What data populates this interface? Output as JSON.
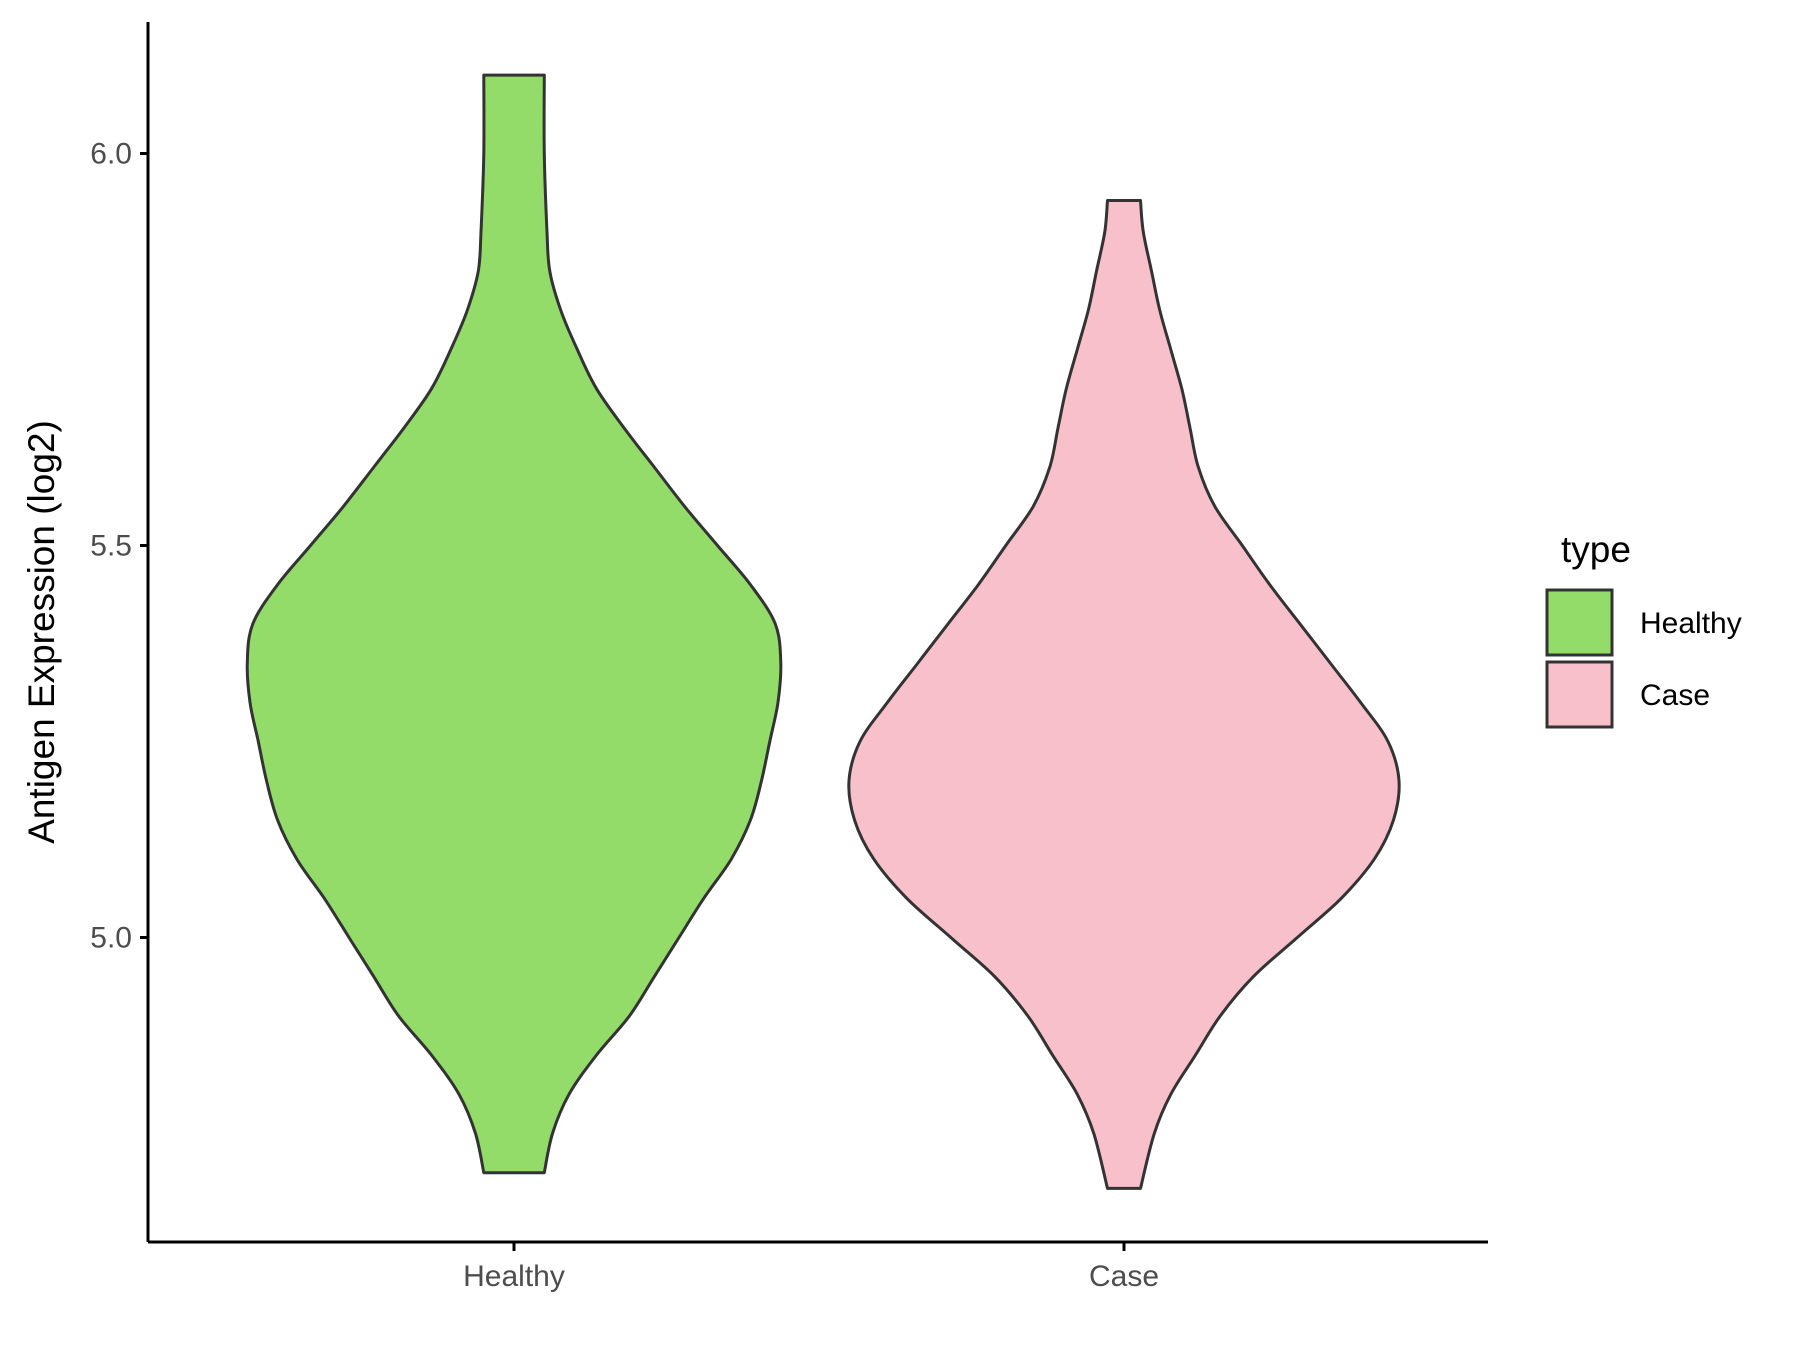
{
  "chart_data": {
    "type": "violin",
    "title": "",
    "xlabel": "",
    "ylabel": "Antigen Expression (log2)",
    "categories": [
      "Healthy",
      "Case"
    ],
    "ylim": [
      4.62,
      6.17
    ],
    "yticks": [
      5.0,
      5.5,
      6.0
    ],
    "ytick_labels": [
      "5.0",
      "5.5",
      "6.0"
    ],
    "grid": false,
    "legend": {
      "title": "type",
      "position": "right",
      "entries": [
        "Healthy",
        "Case"
      ]
    },
    "colors": {
      "Healthy": "#93dc69",
      "Case": "#f7c0cb",
      "outline": "#333333",
      "axis": "#000000"
    },
    "series": [
      {
        "name": "Healthy",
        "min": 4.7,
        "max": 6.1,
        "density_profile": [
          [
            4.7,
            0.11
          ],
          [
            4.75,
            0.14
          ],
          [
            4.8,
            0.2
          ],
          [
            4.85,
            0.3
          ],
          [
            4.9,
            0.42
          ],
          [
            4.95,
            0.51
          ],
          [
            5.0,
            0.6
          ],
          [
            5.05,
            0.69
          ],
          [
            5.1,
            0.79
          ],
          [
            5.15,
            0.86
          ],
          [
            5.2,
            0.9
          ],
          [
            5.25,
            0.93
          ],
          [
            5.3,
            0.96
          ],
          [
            5.35,
            0.97
          ],
          [
            5.4,
            0.95
          ],
          [
            5.45,
            0.86
          ],
          [
            5.5,
            0.74
          ],
          [
            5.55,
            0.62
          ],
          [
            5.6,
            0.51
          ],
          [
            5.65,
            0.4
          ],
          [
            5.7,
            0.3
          ],
          [
            5.75,
            0.23
          ],
          [
            5.8,
            0.17
          ],
          [
            5.85,
            0.13
          ],
          [
            5.9,
            0.12
          ],
          [
            6.0,
            0.11
          ],
          [
            6.1,
            0.11
          ]
        ]
      },
      {
        "name": "Case",
        "min": 4.68,
        "max": 5.94,
        "density_profile": [
          [
            4.68,
            0.06
          ],
          [
            4.75,
            0.11
          ],
          [
            4.8,
            0.17
          ],
          [
            4.85,
            0.26
          ],
          [
            4.9,
            0.35
          ],
          [
            4.95,
            0.47
          ],
          [
            5.0,
            0.63
          ],
          [
            5.05,
            0.79
          ],
          [
            5.1,
            0.91
          ],
          [
            5.15,
            0.98
          ],
          [
            5.2,
            1.0
          ],
          [
            5.25,
            0.96
          ],
          [
            5.3,
            0.86
          ],
          [
            5.35,
            0.75
          ],
          [
            5.4,
            0.64
          ],
          [
            5.45,
            0.53
          ],
          [
            5.5,
            0.43
          ],
          [
            5.55,
            0.33
          ],
          [
            5.6,
            0.27
          ],
          [
            5.65,
            0.24
          ],
          [
            5.7,
            0.21
          ],
          [
            5.75,
            0.17
          ],
          [
            5.8,
            0.13
          ],
          [
            5.85,
            0.1
          ],
          [
            5.9,
            0.07
          ],
          [
            5.94,
            0.06
          ]
        ]
      }
    ]
  }
}
